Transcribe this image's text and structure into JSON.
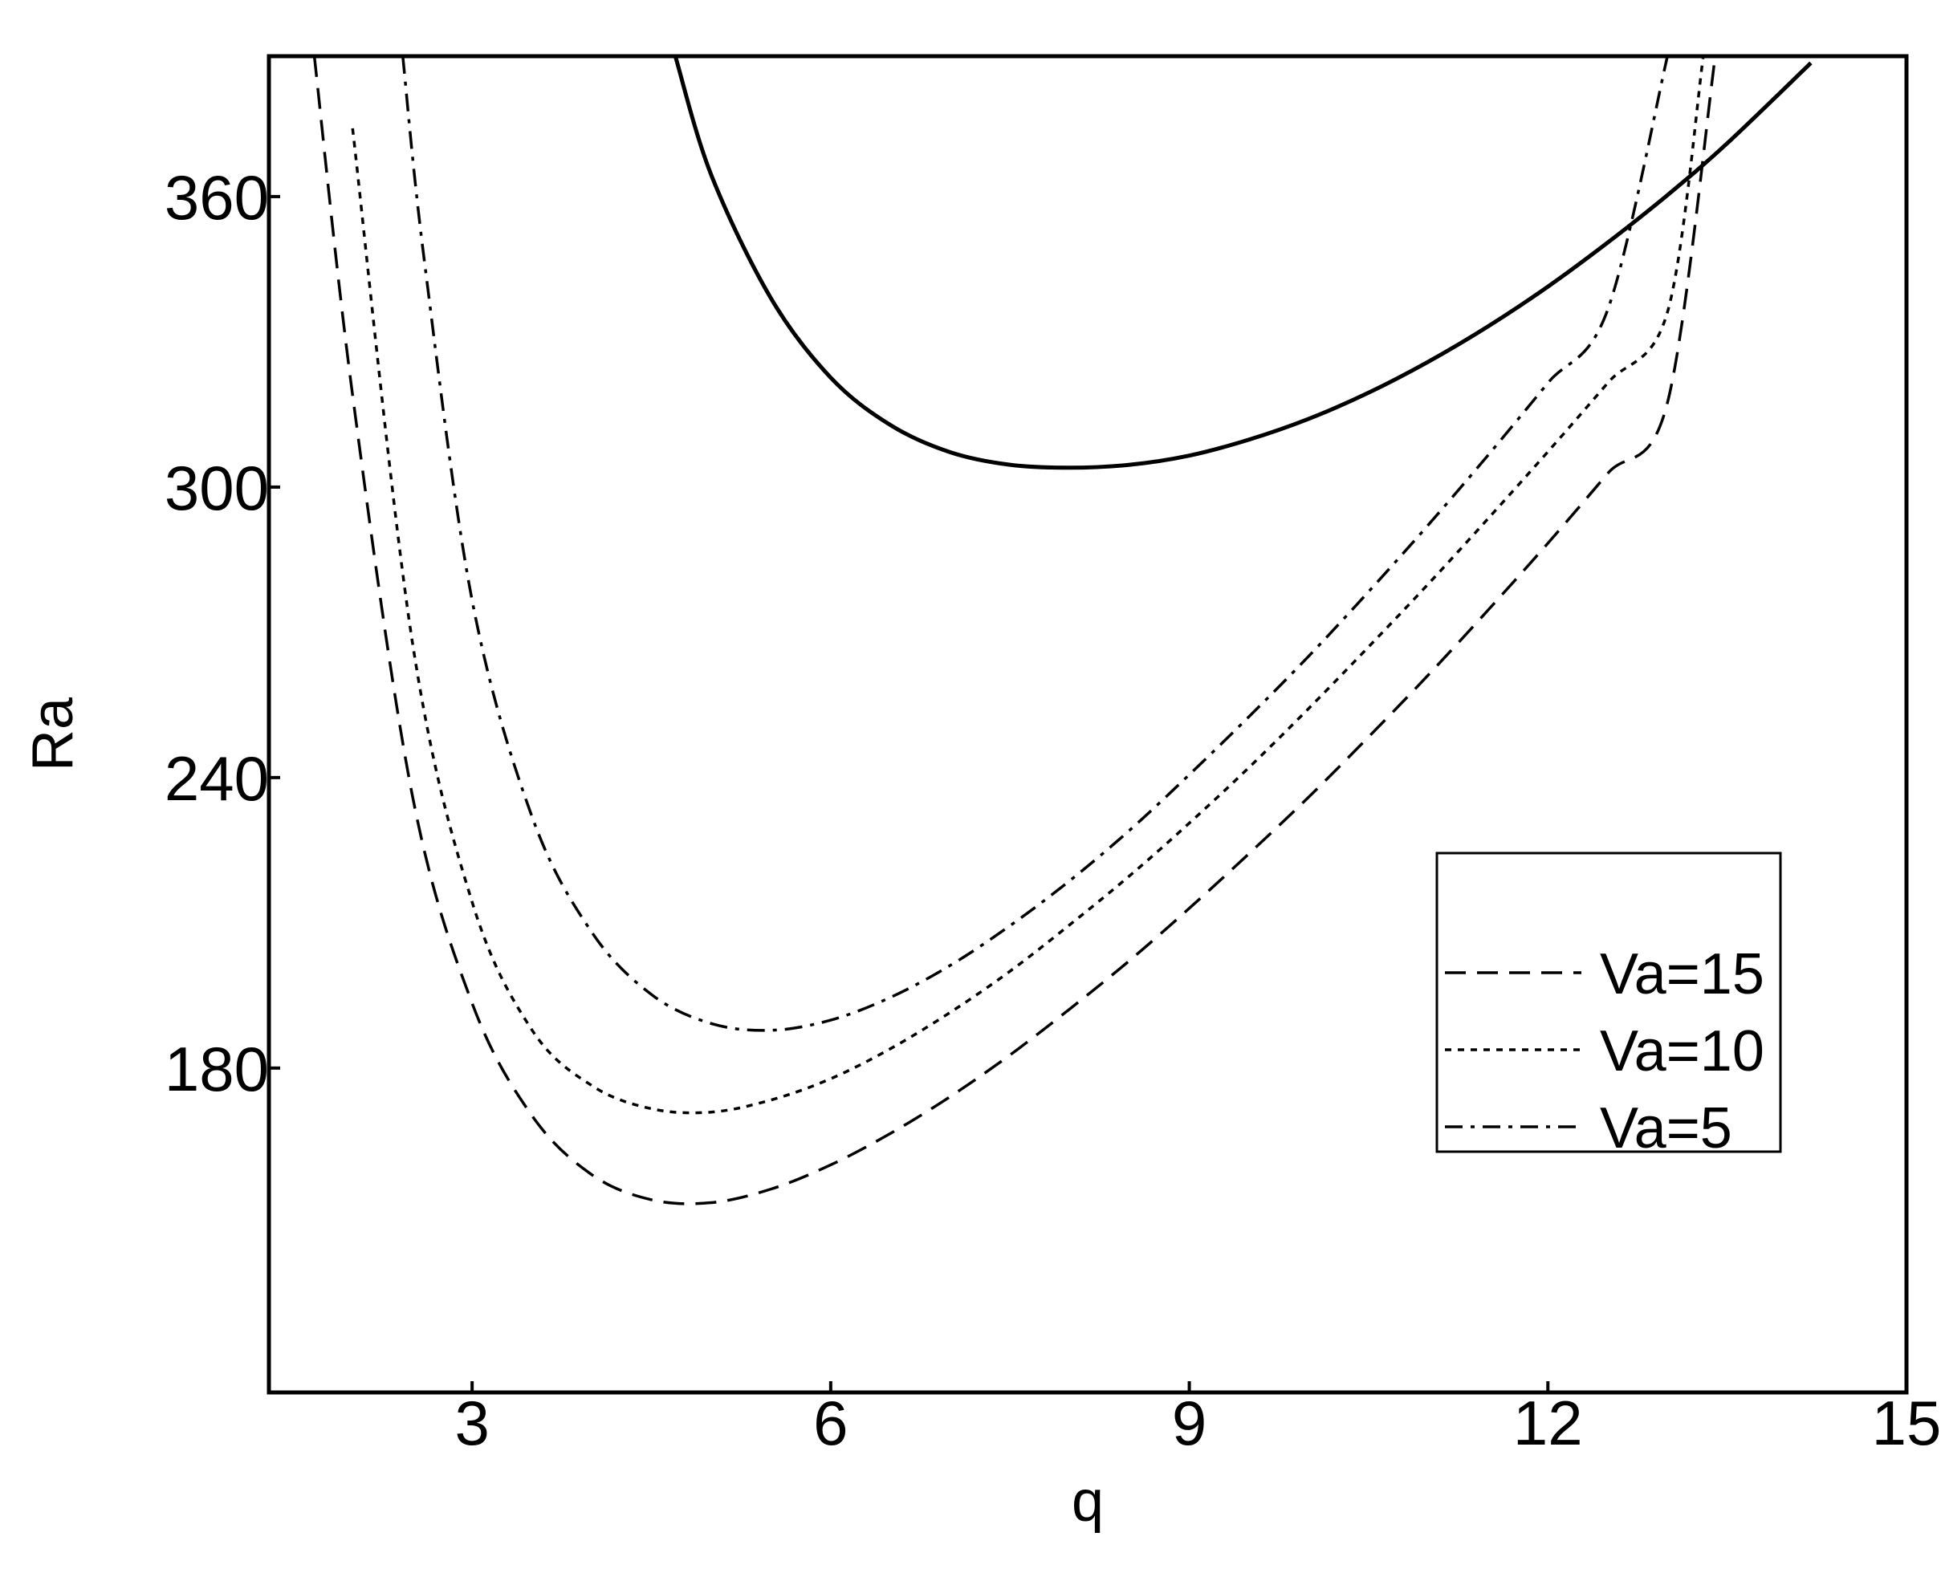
{
  "chart_data": {
    "type": "line",
    "title": "",
    "xlabel": "q",
    "ylabel": "Ra",
    "xlim": [
      1.3,
      15
    ],
    "ylim": [
      113,
      389
    ],
    "xticks": [
      3,
      6,
      9,
      12,
      15
    ],
    "yticks": [
      180,
      240,
      300,
      360
    ],
    "xtick_labels": [
      "3",
      "6",
      "9",
      "12",
      "15"
    ],
    "ytick_labels": [
      "180",
      "240",
      "300",
      "360"
    ],
    "grid": false,
    "legend_position": "lower-right",
    "series": [
      {
        "name": "",
        "style": "solid",
        "x": [
          4.7,
          5.0,
          5.5,
          6.0,
          6.5,
          7.0,
          7.5,
          8.0,
          8.5,
          9.0,
          9.5,
          10.0,
          10.5,
          11.0,
          11.5,
          12.0,
          12.5,
          13.0,
          13.5,
          14.2
        ],
        "y": [
          389,
          364.5,
          339.0,
          322.6,
          312.8,
          307.2,
          304.6,
          304.0,
          304.6,
          306.5,
          309.8,
          314.1,
          319.5,
          325.9,
          333.2,
          341.4,
          350.5,
          360.3,
          371.0,
          387.6
        ]
      },
      {
        "name": "Va=15",
        "style": "dashed",
        "x": [
          1.68,
          2.0,
          2.5,
          3.0,
          3.5,
          4.0,
          4.5,
          5.0,
          5.5,
          6.0,
          6.5,
          7.0,
          7.5,
          8.0,
          8.5,
          9.0,
          9.5,
          10.0,
          10.5,
          11.0,
          11.5,
          12.0,
          12.5,
          13.0,
          13.4
        ],
        "y": [
          389,
          319.0,
          236.3,
          193.4,
          170.2,
          158.0,
          152.8,
          152.2,
          155.0,
          160.0,
          166.5,
          174.1,
          182.7,
          192.2,
          202.2,
          213.0,
          224.3,
          236.0,
          248.4,
          261.2,
          274.6,
          288.4,
          302.8,
          317.4,
          389
        ]
      },
      {
        "name": "Va=10",
        "style": "dotted",
        "x": [
          2.0,
          2.5,
          3.0,
          3.5,
          4.0,
          4.5,
          5.0,
          5.5,
          6.0,
          6.5,
          7.0,
          7.5,
          8.0,
          8.5,
          9.0,
          9.5,
          10.0,
          10.5,
          11.0,
          11.5,
          12.0,
          12.5,
          13.0,
          13.3
        ],
        "y": [
          374.1,
          268.0,
          214.3,
          187.9,
          176.4,
          171.6,
          170.9,
          173.4,
          177.8,
          184.0,
          191.5,
          200.0,
          209.6,
          219.7,
          230.6,
          242.1,
          254.3,
          267.0,
          280.0,
          293.5,
          307.3,
          321.5,
          336.1,
          389
        ]
      },
      {
        "name": "Va=5",
        "style": "dashdot",
        "x": [
          2.42,
          2.6,
          3.0,
          3.5,
          4.0,
          4.5,
          5.0,
          5.5,
          6.0,
          6.5,
          7.0,
          7.5,
          8.0,
          8.5,
          9.0,
          9.5,
          10.0,
          10.5,
          11.0,
          11.5,
          12.0,
          12.5,
          13.0
        ],
        "y": [
          389,
          346.8,
          276.6,
          232.0,
          208.1,
          195.2,
          189.2,
          187.8,
          189.9,
          194.6,
          201.2,
          209.4,
          218.7,
          229.1,
          240.6,
          252.6,
          265.1,
          278.4,
          292.2,
          306.6,
          321.5,
          336.6,
          389
        ]
      }
    ]
  }
}
